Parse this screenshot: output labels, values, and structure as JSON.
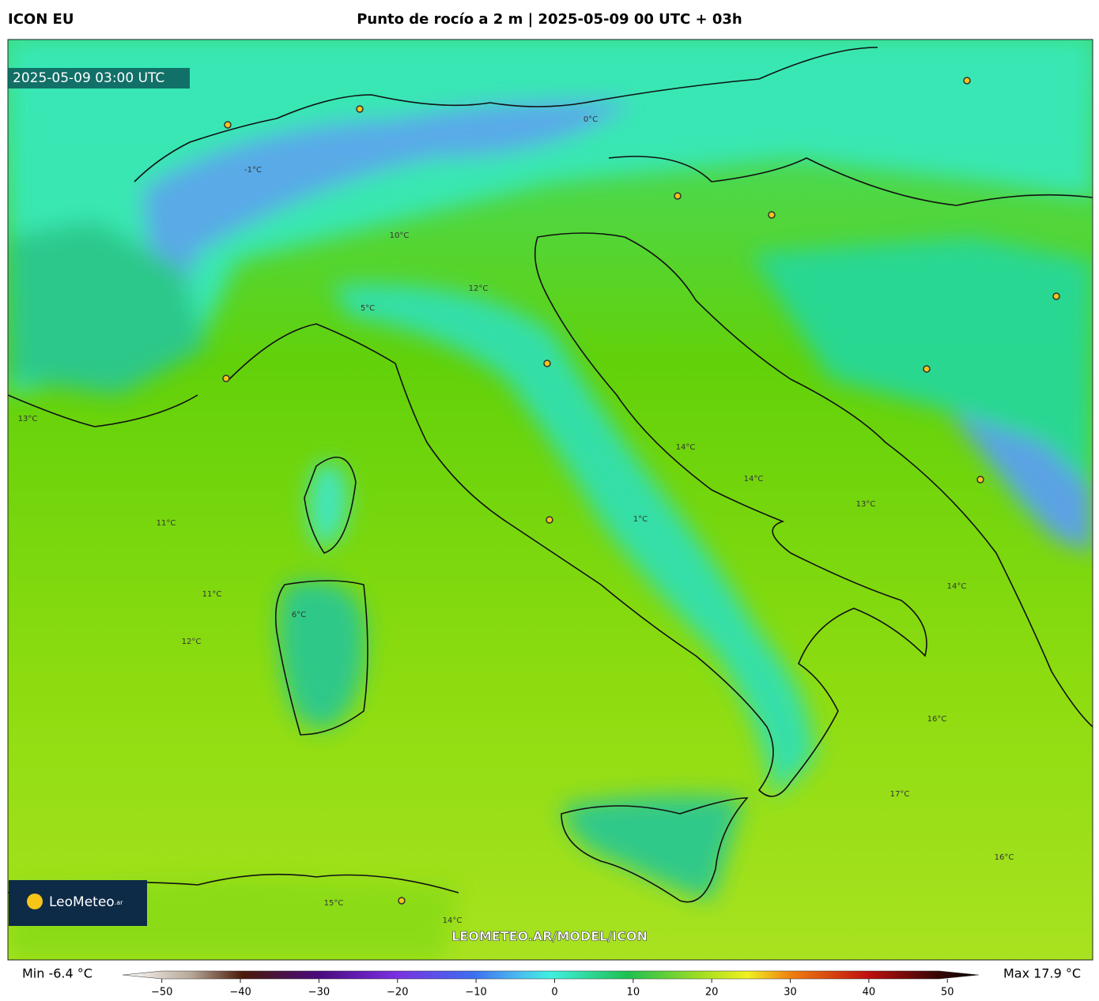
{
  "header": {
    "model": "ICON EU",
    "title": "Punto de rocío a 2 m | 2025-05-09 00 UTC + 03h"
  },
  "map": {
    "timestamp": "2025-05-09 03:00 UTC",
    "watermark": "LEOMETEO.AR/MODEL/ICON",
    "logo": {
      "name": "LeoMeteo",
      "suffix": ".ar"
    },
    "contour_labels": [
      "12°C",
      "10°C",
      "13°C",
      "14°C",
      "11°C",
      "11°C",
      "12°C",
      "14°C",
      "14°C",
      "13°C",
      "16°C",
      "17°C",
      "16°C",
      "15°C",
      "1°C",
      "6°C",
      "-1°C",
      "5°C",
      "0°C",
      "14°C"
    ]
  },
  "colorbar": {
    "min_label": "Min -6.4 °C",
    "max_label": "Max 17.9 °C",
    "lim": [
      -55,
      54
    ],
    "ticks": [
      {
        "value": -50,
        "label": "−50"
      },
      {
        "value": -40,
        "label": "−40"
      },
      {
        "value": -30,
        "label": "−30"
      },
      {
        "value": -20,
        "label": "−20"
      },
      {
        "value": -10,
        "label": "−10"
      },
      0,
      10,
      20,
      30,
      40,
      50
    ]
  }
}
